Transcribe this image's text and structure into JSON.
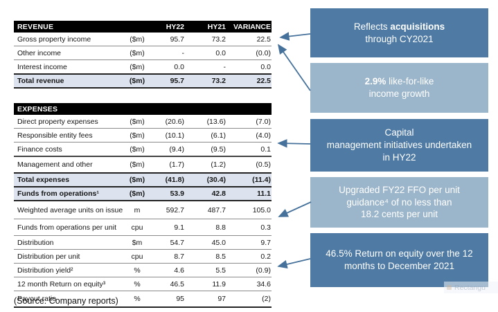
{
  "colors": {
    "dark_box": "#4e7aa3",
    "light_box": "#9bb5ca",
    "arrow": "#45719b",
    "total_row_bg": "#dce3ee",
    "section_bar_bg": "#000000"
  },
  "table": {
    "sections": [
      {
        "header": "REVENUE",
        "columns": {
          "hy22": "HY22",
          "hy21": "HY21",
          "variance": "VARIANCE"
        },
        "rows": [
          {
            "label": "Gross property income",
            "unit": "($m)",
            "hy22": "95.7",
            "hy21": "73.2",
            "variance": "22.5",
            "style": "normal",
            "top": "none",
            "size": "s"
          },
          {
            "label": "Other income",
            "unit": "($m)",
            "hy22": "-",
            "hy21": "0.0",
            "variance": "(0.0)",
            "style": "normal",
            "top": "thin",
            "size": "s"
          },
          {
            "label": "Interest income",
            "unit": "($m)",
            "hy22": "0.0",
            "hy21": "-",
            "variance": "0.0",
            "style": "normal",
            "top": "thin",
            "size": "s"
          },
          {
            "label": "Total revenue",
            "unit": "($m)",
            "hy22": "95.7",
            "hy21": "73.2",
            "variance": "22.5",
            "style": "total",
            "top": "heavy",
            "bottom": "heavy",
            "size": "s"
          }
        ]
      },
      {
        "header": "EXPENSES",
        "columns": null,
        "rows": [
          {
            "label": "Direct property expenses",
            "unit": "($m)",
            "hy22": "(20.6)",
            "hy21": "(13.6)",
            "variance": "(7.0)",
            "style": "normal",
            "top": "none",
            "size": "s"
          },
          {
            "label": "Responsible entity fees",
            "unit": "($m)",
            "hy22": "(10.1)",
            "hy21": "(6.1)",
            "variance": "(4.0)",
            "style": "normal",
            "top": "thin",
            "size": "s"
          },
          {
            "label": "Finance costs",
            "unit": "($m)",
            "hy22": "(9.4)",
            "hy21": "(9.5)",
            "variance": "0.1",
            "style": "normal",
            "top": "thin",
            "size": "s"
          },
          {
            "label": "Management and other",
            "unit": "($m)",
            "hy22": "(1.7)",
            "hy21": "(1.2)",
            "variance": "(0.5)",
            "style": "normal",
            "top": "med",
            "size": "m"
          },
          {
            "label": "Total expenses",
            "unit": "($m)",
            "hy22": "(41.8)",
            "hy21": "(30.4)",
            "variance": "(11.4)",
            "style": "total",
            "top": "heavy",
            "size": "s"
          },
          {
            "label": "Funds from operations¹",
            "unit": "($m)",
            "hy22": "53.9",
            "hy21": "42.8",
            "variance": "11.1",
            "style": "total",
            "top": "heavy",
            "bottom": "heavy",
            "size": "s"
          },
          {
            "label": "Weighted average units on issue",
            "unit": "m",
            "hy22": "592.7",
            "hy21": "487.7",
            "variance": "105.0",
            "style": "normal",
            "top": "none",
            "size": "l"
          },
          {
            "label": "Funds from operations per unit",
            "unit": "cpu",
            "hy22": "9.1",
            "hy21": "8.8",
            "variance": "0.3",
            "style": "normal",
            "top": "thin",
            "size": "xl"
          },
          {
            "label": "Distribution",
            "unit": "$m",
            "hy22": "54.7",
            "hy21": "45.0",
            "variance": "9.7",
            "style": "normal",
            "top": "thin",
            "size": "s"
          },
          {
            "label": "Distribution per unit",
            "unit": "cpu",
            "hy22": "8.7",
            "hy21": "8.5",
            "variance": "0.2",
            "style": "normal",
            "top": "thin",
            "size": "s"
          },
          {
            "label": "Distribution yield²",
            "unit": "%",
            "hy22": "4.6",
            "hy21": "5.5",
            "variance": "(0.9)",
            "style": "normal",
            "top": "thin",
            "size": "s"
          },
          {
            "label": "12 month Return on equity³",
            "unit": "%",
            "hy22": "46.5",
            "hy21": "11.9",
            "variance": "34.6",
            "style": "normal",
            "top": "thin",
            "size": "s"
          },
          {
            "label": "Payout ratio",
            "unit": "%",
            "hy22": "95",
            "hy21": "97",
            "variance": "(2)",
            "style": "normal",
            "top": "thin",
            "bottom": "heavy",
            "size": "m"
          }
        ]
      }
    ]
  },
  "callouts": [
    {
      "tone": "dark",
      "lines": [
        [
          {
            "t": "Reflects ",
            "b": 0
          },
          {
            "t": "acquisitions",
            "b": 1
          }
        ],
        [
          {
            "t": "through CY2021",
            "b": 0
          }
        ]
      ]
    },
    {
      "tone": "light",
      "lines": [
        [
          {
            "t": "2.9%",
            "b": 1
          },
          {
            "t": " like-for-like",
            "b": 0
          }
        ],
        [
          {
            "t": "income growth",
            "b": 0
          }
        ]
      ]
    },
    {
      "tone": "dark",
      "lines": [
        [
          {
            "t": "Capital",
            "b": 0
          }
        ],
        [
          {
            "t": "management initiatives undertaken",
            "b": 0
          }
        ],
        [
          {
            "t": "in HY22",
            "b": 0
          }
        ]
      ]
    },
    {
      "tone": "light",
      "lines": [
        [
          {
            "t": "Upgraded FY22 FFO per unit",
            "b": 0
          }
        ],
        [
          {
            "t": "guidance⁴ of no less than",
            "b": 0
          }
        ],
        [
          {
            "t": "18.2 cents per unit",
            "b": 0
          }
        ]
      ]
    },
    {
      "tone": "dark",
      "lines": [
        [
          {
            "t": "46.5% Return on equity over the 12",
            "b": 0
          }
        ],
        [
          {
            "t": "months to December 2021",
            "b": 0
          }
        ]
      ]
    }
  ],
  "source_note": "(Source: Company reports)",
  "ghost_label": "Rectangu"
}
